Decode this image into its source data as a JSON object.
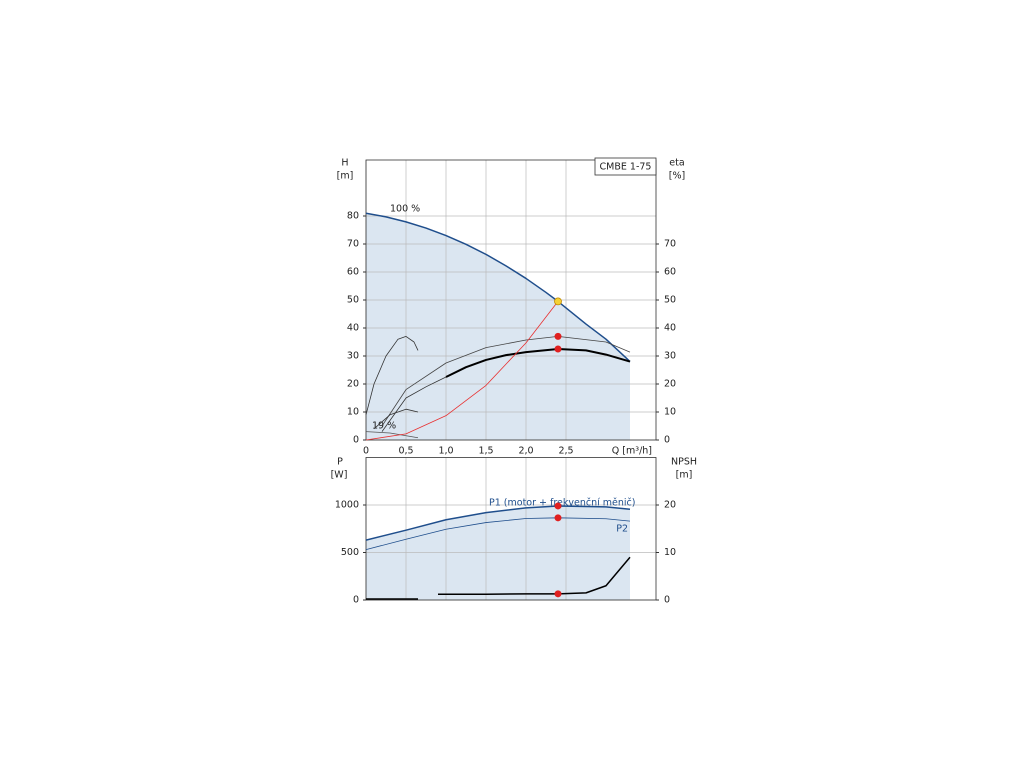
{
  "chart_data": [
    {
      "type": "line",
      "title": "CMBE 1-75",
      "x_label": "Q [m³/h]",
      "y_label": "H",
      "y_unit": "[m]",
      "y2_label": "eta",
      "y2_unit": "[%]",
      "xlim": [
        0,
        3.625
      ],
      "xticks": [
        0,
        {
          "value": 0.5,
          "label": "0,5"
        },
        {
          "value": 1.0,
          "label": "1,0"
        },
        {
          "value": 1.5,
          "label": "1,5"
        },
        {
          "value": 2.0,
          "label": "2,0"
        },
        {
          "value": 2.5,
          "label": "2,5"
        }
      ],
      "ylim": [
        0,
        100
      ],
      "yticks": [
        0,
        10,
        20,
        30,
        40,
        50,
        60,
        70,
        80
      ],
      "y2lim": [
        0,
        100
      ],
      "y2ticks": [
        0,
        10,
        20,
        30,
        40,
        50,
        60,
        70
      ],
      "grid": true,
      "series": [
        {
          "name": "100 %",
          "color": "#1f4e8c",
          "width": 1.5,
          "fill": "#dbe6f1",
          "x": [
            0,
            0.25,
            0.5,
            0.75,
            1.0,
            1.25,
            1.5,
            1.75,
            2.0,
            2.25,
            2.4,
            2.75,
            3.0,
            3.3
          ],
          "values": [
            81,
            79.7,
            77.9,
            75.7,
            73,
            69.9,
            66.3,
            62.2,
            57.7,
            52.7,
            49.5,
            41.4,
            36,
            28
          ]
        },
        {
          "name": "19 %",
          "color": "#555555",
          "width": 0.8,
          "x": [
            0,
            0.3,
            0.65
          ],
          "values": [
            3,
            2.5,
            0.8
          ]
        },
        {
          "color": "#000000",
          "width": 2,
          "axis": "y2",
          "x": [
            1.0,
            1.25,
            1.5,
            1.75,
            2.0,
            2.4,
            2.75,
            3.0,
            3.3
          ],
          "values": [
            22.5,
            26,
            28.6,
            30.3,
            31.4,
            32.5,
            32,
            30.5,
            28
          ]
        },
        {
          "color": "#333333",
          "width": 0.8,
          "axis": "y2",
          "x": [
            0.2,
            0.5,
            0.75,
            1.0
          ],
          "values": [
            3,
            15,
            19,
            22.5
          ]
        },
        {
          "color": "#444444",
          "width": 0.8,
          "axis": "y2",
          "x": [
            0.2,
            0.5,
            1.0,
            1.5,
            2.0,
            2.4,
            3.0,
            3.3
          ],
          "values": [
            5,
            18,
            27.5,
            33,
            35.7,
            37,
            35,
            31.4
          ]
        },
        {
          "color": "#e83030",
          "width": 0.8,
          "x": [
            0,
            0.5,
            1.0,
            1.5,
            2.0,
            2.4
          ],
          "values": [
            0,
            2.2,
            8.7,
            19.5,
            34.7,
            49.5
          ]
        },
        {
          "color": "#333333",
          "width": 0.8,
          "axis": "y2",
          "x": [
            0,
            0.1,
            0.25,
            0.4,
            0.5,
            0.6,
            0.65
          ],
          "values": [
            9,
            20,
            30,
            36,
            37,
            35,
            32
          ]
        },
        {
          "color": "#333333",
          "width": 0.8,
          "axis": "y2",
          "x": [
            0.1,
            0.3,
            0.5,
            0.65
          ],
          "values": [
            4,
            9,
            11,
            10
          ]
        },
        {
          "color": "#f5d033",
          "marker": "dot",
          "x": [
            2.4
          ],
          "values": [
            49.5
          ]
        },
        {
          "color": "#e02020",
          "marker": "dot",
          "axis": "y2",
          "x": [
            2.4,
            2.4
          ],
          "values": [
            37,
            32.5
          ]
        }
      ]
    },
    {
      "type": "line",
      "y_label": "P",
      "y_unit": "[W]",
      "y2_label": "NPSH",
      "y2_unit": "[m]",
      "xlim": [
        0,
        3.625
      ],
      "ylim": [
        0,
        1500
      ],
      "yticks": [
        0,
        500,
        1000
      ],
      "y2lim": [
        0,
        30
      ],
      "y2ticks": [
        0,
        10,
        20
      ],
      "grid": true,
      "series": [
        {
          "name": "P1 (motor + frekvenční měnič)",
          "color": "#1f4e8c",
          "width": 1.5,
          "fill": "#dbe6f1",
          "x": [
            0,
            0.5,
            1.0,
            1.5,
            2.0,
            2.4,
            3.0,
            3.3
          ],
          "values": [
            630,
            735,
            845,
            920,
            970,
            990,
            980,
            955
          ]
        },
        {
          "name": "P2",
          "color": "#1f4e8c",
          "width": 0.8,
          "x": [
            0,
            0.5,
            1.0,
            1.5,
            2.0,
            2.4,
            3.0,
            3.3
          ],
          "values": [
            530,
            640,
            745,
            815,
            858,
            865,
            855,
            830
          ]
        },
        {
          "color": "#000000",
          "width": 1.5,
          "axis": "y2",
          "x": [
            0.9,
            1.5,
            2.0,
            2.4,
            2.75,
            3.0,
            3.3
          ],
          "values": [
            1.2,
            1.2,
            1.3,
            1.3,
            1.5,
            3,
            9
          ]
        },
        {
          "color": "#000000",
          "width": 1.5,
          "axis": "y2",
          "x": [
            0,
            0.65
          ],
          "values": [
            0.2,
            0.2
          ]
        },
        {
          "color": "#e02020",
          "marker": "dot",
          "x": [
            2.4,
            2.4
          ],
          "values": [
            990,
            865
          ]
        },
        {
          "color": "#e02020",
          "marker": "dot",
          "axis": "y2",
          "x": [
            2.4
          ],
          "values": [
            1.3
          ]
        }
      ]
    }
  ]
}
